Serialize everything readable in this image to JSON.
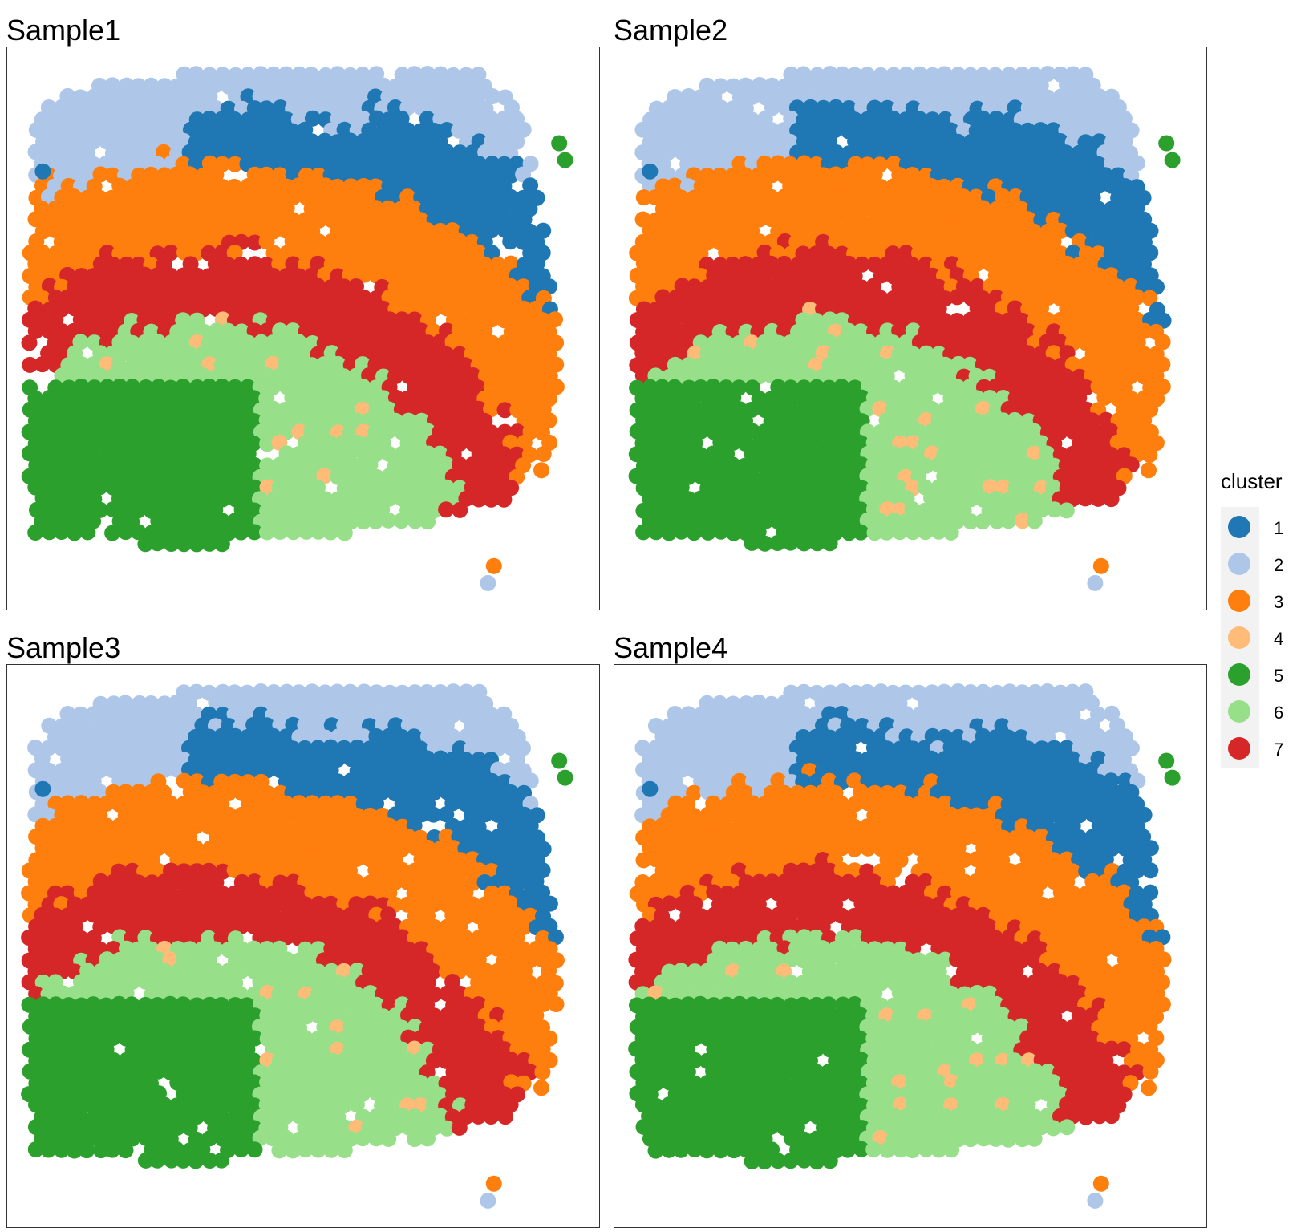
{
  "chart_data": [
    {
      "type": "scatter",
      "title": "Sample1",
      "grid": false,
      "axes": "hidden",
      "xlim": [
        0,
        1
      ],
      "ylim": [
        0,
        1
      ],
      "layers": {
        "c1_inner": [
          0.55,
          0.385,
          0.74
        ],
        "c1_outer": [
          0.8,
          0.385,
          0.74
        ],
        "c2_top": 0.92
      }
    },
    {
      "type": "scatter",
      "title": "Sample2",
      "grid": false,
      "axes": "hidden",
      "xlim": [
        0,
        1
      ],
      "ylim": [
        0,
        1
      ]
    },
    {
      "type": "scatter",
      "title": "Sample3",
      "grid": false,
      "axes": "hidden",
      "xlim": [
        0,
        1
      ],
      "ylim": [
        0,
        1
      ]
    },
    {
      "type": "scatter",
      "title": "Sample4",
      "grid": false,
      "axes": "hidden",
      "xlim": [
        0,
        1
      ],
      "ylim": [
        0,
        1
      ]
    }
  ],
  "legend": {
    "title": "cluster",
    "placement": "right",
    "items": [
      {
        "label": "1",
        "color": "#1F77B4"
      },
      {
        "label": "2",
        "color": "#AEC7E8"
      },
      {
        "label": "3",
        "color": "#FF7F0E"
      },
      {
        "label": "4",
        "color": "#FFBB78"
      },
      {
        "label": "5",
        "color": "#2CA02C"
      },
      {
        "label": "6",
        "color": "#98DF8A"
      },
      {
        "label": "7",
        "color": "#D62728"
      }
    ]
  }
}
